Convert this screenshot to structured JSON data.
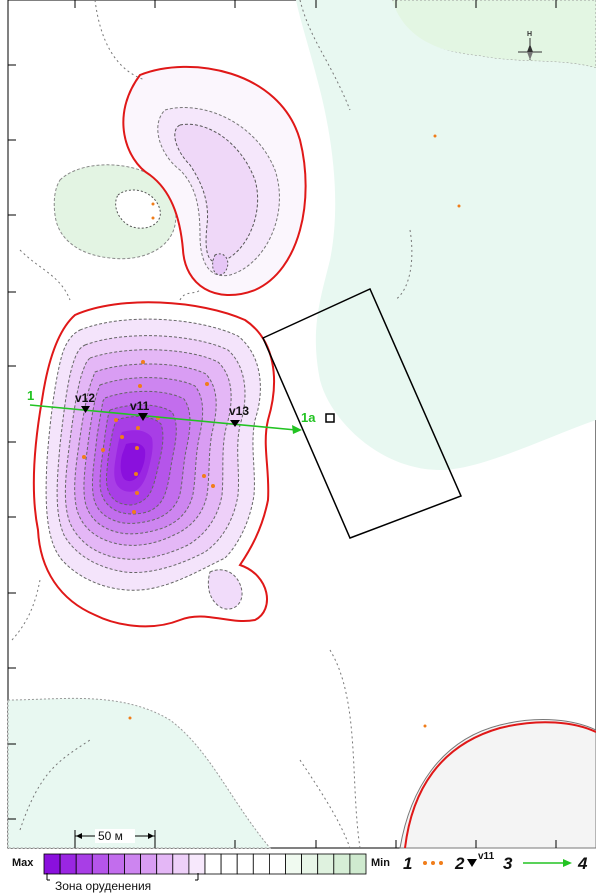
{
  "north_label": "Н",
  "scale_label": "50 м",
  "profile": {
    "start_label": "1",
    "end_label": "1а"
  },
  "wells": [
    {
      "label": "v12"
    },
    {
      "label": "v11"
    },
    {
      "label": "v13"
    }
  ],
  "legend": {
    "max_label": "Max",
    "min_label": "Min",
    "zone_label": "Зона оруденения",
    "item1_num": "1",
    "item2_num": "2",
    "item3_num": "3",
    "item3_sup": "v11",
    "item4_num": "4",
    "colors": [
      "#8a10dd",
      "#9a26e2",
      "#a83ee6",
      "#b555ea",
      "#c26ded",
      "#cd85f0",
      "#d99df3",
      "#e4b7f6",
      "#eed0f9",
      "#f7e8fc",
      "#ffffff",
      "#ffffff",
      "#ffffff",
      "#ffffff",
      "#ffffff",
      "#f0faf0",
      "#e8f6e8",
      "#dff2df",
      "#d6eed6",
      "#cfeacf"
    ]
  },
  "colors": {
    "ore_contour": "#e01818",
    "profile_line": "#22c322",
    "sample_dot": "#f07d1a",
    "low_fill": "#e6f7ef"
  }
}
